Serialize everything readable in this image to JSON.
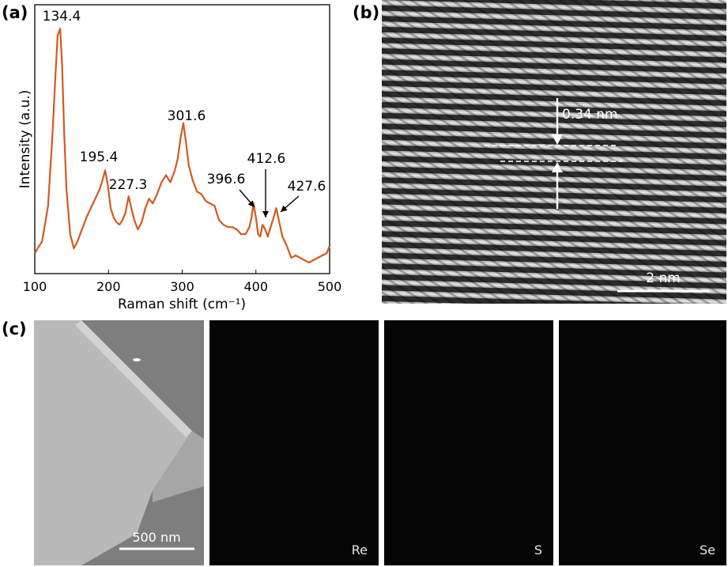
{
  "panels": {
    "a": "(a)",
    "b": "(b)",
    "c": "(c)"
  },
  "chart_data": {
    "type": "line",
    "xlabel": "Raman shift (cm⁻¹)",
    "ylabel": "Intensity (a.u.)",
    "xlim": [
      100,
      500
    ],
    "xticks": [
      100,
      200,
      300,
      400,
      500
    ],
    "yticks_shown": false,
    "grid": false,
    "line_color": "#d45a1e",
    "series": [
      {
        "x": [
          100,
          110,
          118,
          124,
          128,
          131,
          134.4,
          137,
          140,
          143,
          148,
          153,
          158,
          164,
          170,
          176,
          182,
          188,
          192,
          195.4,
          199,
          203,
          207,
          211,
          215,
          219,
          223,
          227.3,
          231,
          235,
          240,
          245,
          250,
          255,
          260,
          266,
          272,
          278,
          284,
          290,
          294,
          298,
          301.6,
          305,
          309,
          314,
          320,
          326,
          332,
          338,
          344,
          350,
          356,
          362,
          368,
          374,
          380,
          386,
          391,
          394,
          396.6,
          400,
          403,
          406,
          409,
          412.6,
          416,
          420,
          424,
          427.6,
          431,
          436,
          442,
          448,
          454,
          460,
          466,
          472,
          478,
          484,
          490,
          496,
          500
        ],
        "y": [
          0.05,
          0.1,
          0.25,
          0.55,
          0.8,
          0.97,
          1.0,
          0.85,
          0.55,
          0.32,
          0.13,
          0.07,
          0.1,
          0.15,
          0.2,
          0.24,
          0.28,
          0.32,
          0.36,
          0.4,
          0.34,
          0.24,
          0.2,
          0.18,
          0.17,
          0.19,
          0.22,
          0.29,
          0.24,
          0.19,
          0.15,
          0.18,
          0.24,
          0.28,
          0.26,
          0.3,
          0.35,
          0.38,
          0.35,
          0.4,
          0.45,
          0.54,
          0.6,
          0.52,
          0.42,
          0.36,
          0.31,
          0.3,
          0.27,
          0.26,
          0.25,
          0.19,
          0.17,
          0.16,
          0.16,
          0.15,
          0.13,
          0.13,
          0.16,
          0.2,
          0.26,
          0.2,
          0.13,
          0.12,
          0.17,
          0.15,
          0.12,
          0.16,
          0.2,
          0.24,
          0.19,
          0.12,
          0.08,
          0.03,
          0.04,
          0.03,
          0.02,
          0.01,
          0.02,
          0.03,
          0.04,
          0.05,
          0.08
        ]
      }
    ],
    "annotations": [
      {
        "label": "134.4",
        "x": 134.4
      },
      {
        "label": "195.4",
        "x": 195.4
      },
      {
        "label": "227.3",
        "x": 227.3
      },
      {
        "label": "301.6",
        "x": 301.6
      },
      {
        "label": "396.6",
        "x": 396.6
      },
      {
        "label": "412.6",
        "x": 412.6
      },
      {
        "label": "427.6",
        "x": 427.6
      }
    ]
  },
  "hrtem": {
    "spacing_label": "0.34 nm",
    "scale_bar": "2 nm"
  },
  "eds": {
    "scale_bar": "500 nm",
    "maps": [
      {
        "label": "Re"
      },
      {
        "label": "S"
      },
      {
        "label": "Se"
      }
    ]
  }
}
